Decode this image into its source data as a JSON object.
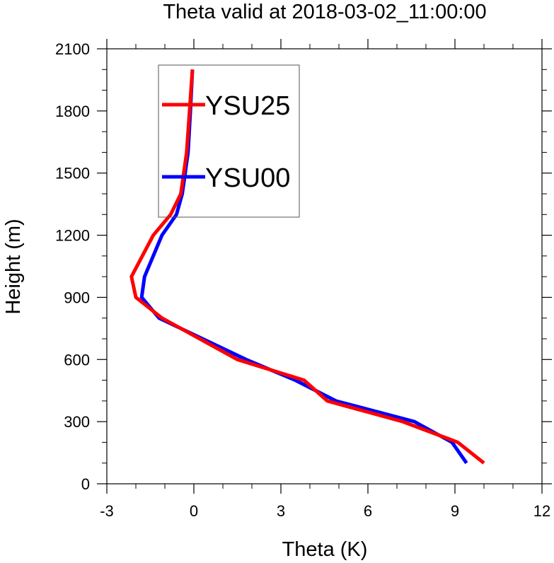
{
  "chart_data": {
    "type": "line",
    "title": "Theta valid at 2018-03-02_11:00:00",
    "xlabel": "Theta (K)",
    "ylabel": "Height (m)",
    "xlim": [
      -3,
      12
    ],
    "ylim": [
      0,
      2100
    ],
    "xticks": [
      -3,
      0,
      3,
      6,
      9,
      12
    ],
    "yticks": [
      0,
      300,
      600,
      900,
      1200,
      1500,
      1800,
      2100
    ],
    "grid": false,
    "legend_position": "top-left",
    "series": [
      {
        "name": "YSU25",
        "color": "#ff0000",
        "points": [
          [
            10.0,
            100
          ],
          [
            9.1,
            200
          ],
          [
            7.2,
            300
          ],
          [
            4.6,
            400
          ],
          [
            3.8,
            500
          ],
          [
            1.5,
            600
          ],
          [
            -1.1,
            800
          ],
          [
            -2.0,
            900
          ],
          [
            -2.15,
            1000
          ],
          [
            -1.4,
            1200
          ],
          [
            -0.8,
            1300
          ],
          [
            -0.45,
            1400
          ],
          [
            -0.25,
            1600
          ],
          [
            -0.15,
            1800
          ],
          [
            -0.05,
            2000
          ]
        ]
      },
      {
        "name": "YSU00",
        "color": "#0000ff",
        "points": [
          [
            9.4,
            100
          ],
          [
            8.9,
            200
          ],
          [
            7.6,
            300
          ],
          [
            4.9,
            400
          ],
          [
            3.5,
            500
          ],
          [
            1.8,
            600
          ],
          [
            -1.2,
            800
          ],
          [
            -1.8,
            900
          ],
          [
            -1.7,
            1000
          ],
          [
            -1.1,
            1200
          ],
          [
            -0.6,
            1300
          ],
          [
            -0.4,
            1400
          ],
          [
            -0.2,
            1600
          ],
          [
            -0.12,
            1800
          ],
          [
            -0.05,
            2000
          ]
        ]
      }
    ]
  }
}
